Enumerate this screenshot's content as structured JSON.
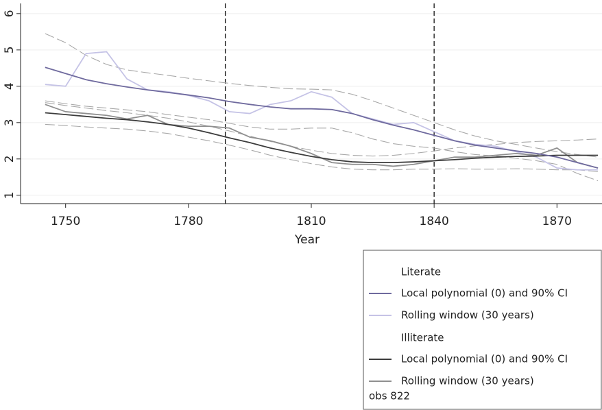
{
  "chart_data": {
    "type": "line",
    "x_label": "Year",
    "xlim": [
      1739,
      1881
    ],
    "xticks": [
      1750,
      1780,
      1810,
      1840,
      1870
    ],
    "ylim": [
      0.77,
      6.28
    ],
    "yticks": [
      1,
      2,
      3,
      4,
      5,
      6
    ],
    "grid": true,
    "xlines": [
      1789,
      1840
    ],
    "x": [
      1745,
      1750,
      1755,
      1760,
      1765,
      1770,
      1775,
      1780,
      1785,
      1790,
      1795,
      1800,
      1805,
      1810,
      1815,
      1820,
      1825,
      1830,
      1835,
      1840,
      1845,
      1850,
      1855,
      1860,
      1865,
      1870,
      1875,
      1880
    ],
    "ci_color": "#a8a8a8",
    "groups": [
      {
        "title": "Literate",
        "series": [
          {
            "name": "Local polynomial (0) and 90% CI",
            "color": "#6f6a9e",
            "values": [
              4.52,
              4.35,
              4.18,
              4.07,
              3.98,
              3.9,
              3.83,
              3.76,
              3.68,
              3.58,
              3.5,
              3.43,
              3.38,
              3.38,
              3.36,
              3.25,
              3.08,
              2.93,
              2.8,
              2.65,
              2.5,
              2.38,
              2.3,
              2.22,
              2.15,
              2.05,
              1.9,
              1.75
            ],
            "ci_upper": [
              5.45,
              5.2,
              4.85,
              4.6,
              4.45,
              4.37,
              4.3,
              4.22,
              4.15,
              4.08,
              4.02,
              3.97,
              3.93,
              3.92,
              3.9,
              3.78,
              3.6,
              3.4,
              3.2,
              3.0,
              2.8,
              2.63,
              2.5,
              2.4,
              2.3,
              2.2,
              2.12,
              2.05
            ],
            "ci_lower": [
              3.6,
              3.52,
              3.45,
              3.4,
              3.35,
              3.3,
              3.22,
              3.15,
              3.08,
              2.98,
              2.88,
              2.82,
              2.82,
              2.85,
              2.85,
              2.72,
              2.55,
              2.42,
              2.35,
              2.3,
              2.2,
              2.12,
              2.08,
              2.02,
              1.95,
              1.85,
              1.6,
              1.4
            ]
          },
          {
            "name": "Rolling window (30 years)",
            "color": "#c5c3e6",
            "values": [
              4.05,
              4.0,
              4.9,
              4.95,
              4.2,
              3.9,
              3.85,
              3.75,
              3.6,
              3.3,
              3.25,
              3.5,
              3.6,
              3.85,
              3.7,
              3.25,
              3.1,
              2.95,
              3.0,
              2.75,
              2.5,
              2.4,
              2.35,
              2.2,
              2.05,
              1.75,
              1.7,
              1.7
            ]
          }
        ]
      },
      {
        "title": "Illiterate",
        "series": [
          {
            "name": "Local polynomial (0) and 90% CI",
            "color": "#3c3c3c",
            "values": [
              3.27,
              3.22,
              3.17,
              3.12,
              3.08,
              3.02,
              2.95,
              2.85,
              2.72,
              2.58,
              2.45,
              2.3,
              2.18,
              2.07,
              1.98,
              1.92,
              1.9,
              1.9,
              1.92,
              1.95,
              1.98,
              2.02,
              2.05,
              2.07,
              2.08,
              2.1,
              2.1,
              2.1
            ],
            "ci_upper": [
              3.55,
              3.47,
              3.4,
              3.33,
              3.27,
              3.2,
              3.12,
              3.02,
              2.9,
              2.77,
              2.63,
              2.48,
              2.35,
              2.24,
              2.15,
              2.1,
              2.08,
              2.1,
              2.15,
              2.22,
              2.3,
              2.36,
              2.4,
              2.45,
              2.48,
              2.5,
              2.52,
              2.55
            ],
            "ci_lower": [
              2.95,
              2.92,
              2.88,
              2.85,
              2.82,
              2.77,
              2.7,
              2.6,
              2.5,
              2.38,
              2.25,
              2.1,
              1.98,
              1.87,
              1.78,
              1.72,
              1.7,
              1.7,
              1.72,
              1.72,
              1.73,
              1.72,
              1.72,
              1.73,
              1.72,
              1.7,
              1.7,
              1.65
            ]
          },
          {
            "name": "Rolling window (30 years)",
            "color": "#8f8f8f",
            "values": [
              3.5,
              3.3,
              3.25,
              3.2,
              3.1,
              3.2,
              2.95,
              2.9,
              2.9,
              2.85,
              2.6,
              2.5,
              2.35,
              2.15,
              1.9,
              1.85,
              1.85,
              1.8,
              1.85,
              1.95,
              2.05,
              2.05,
              2.1,
              2.15,
              2.1,
              2.3,
              1.9,
              1.75
            ]
          }
        ]
      }
    ],
    "note": "obs 822"
  }
}
